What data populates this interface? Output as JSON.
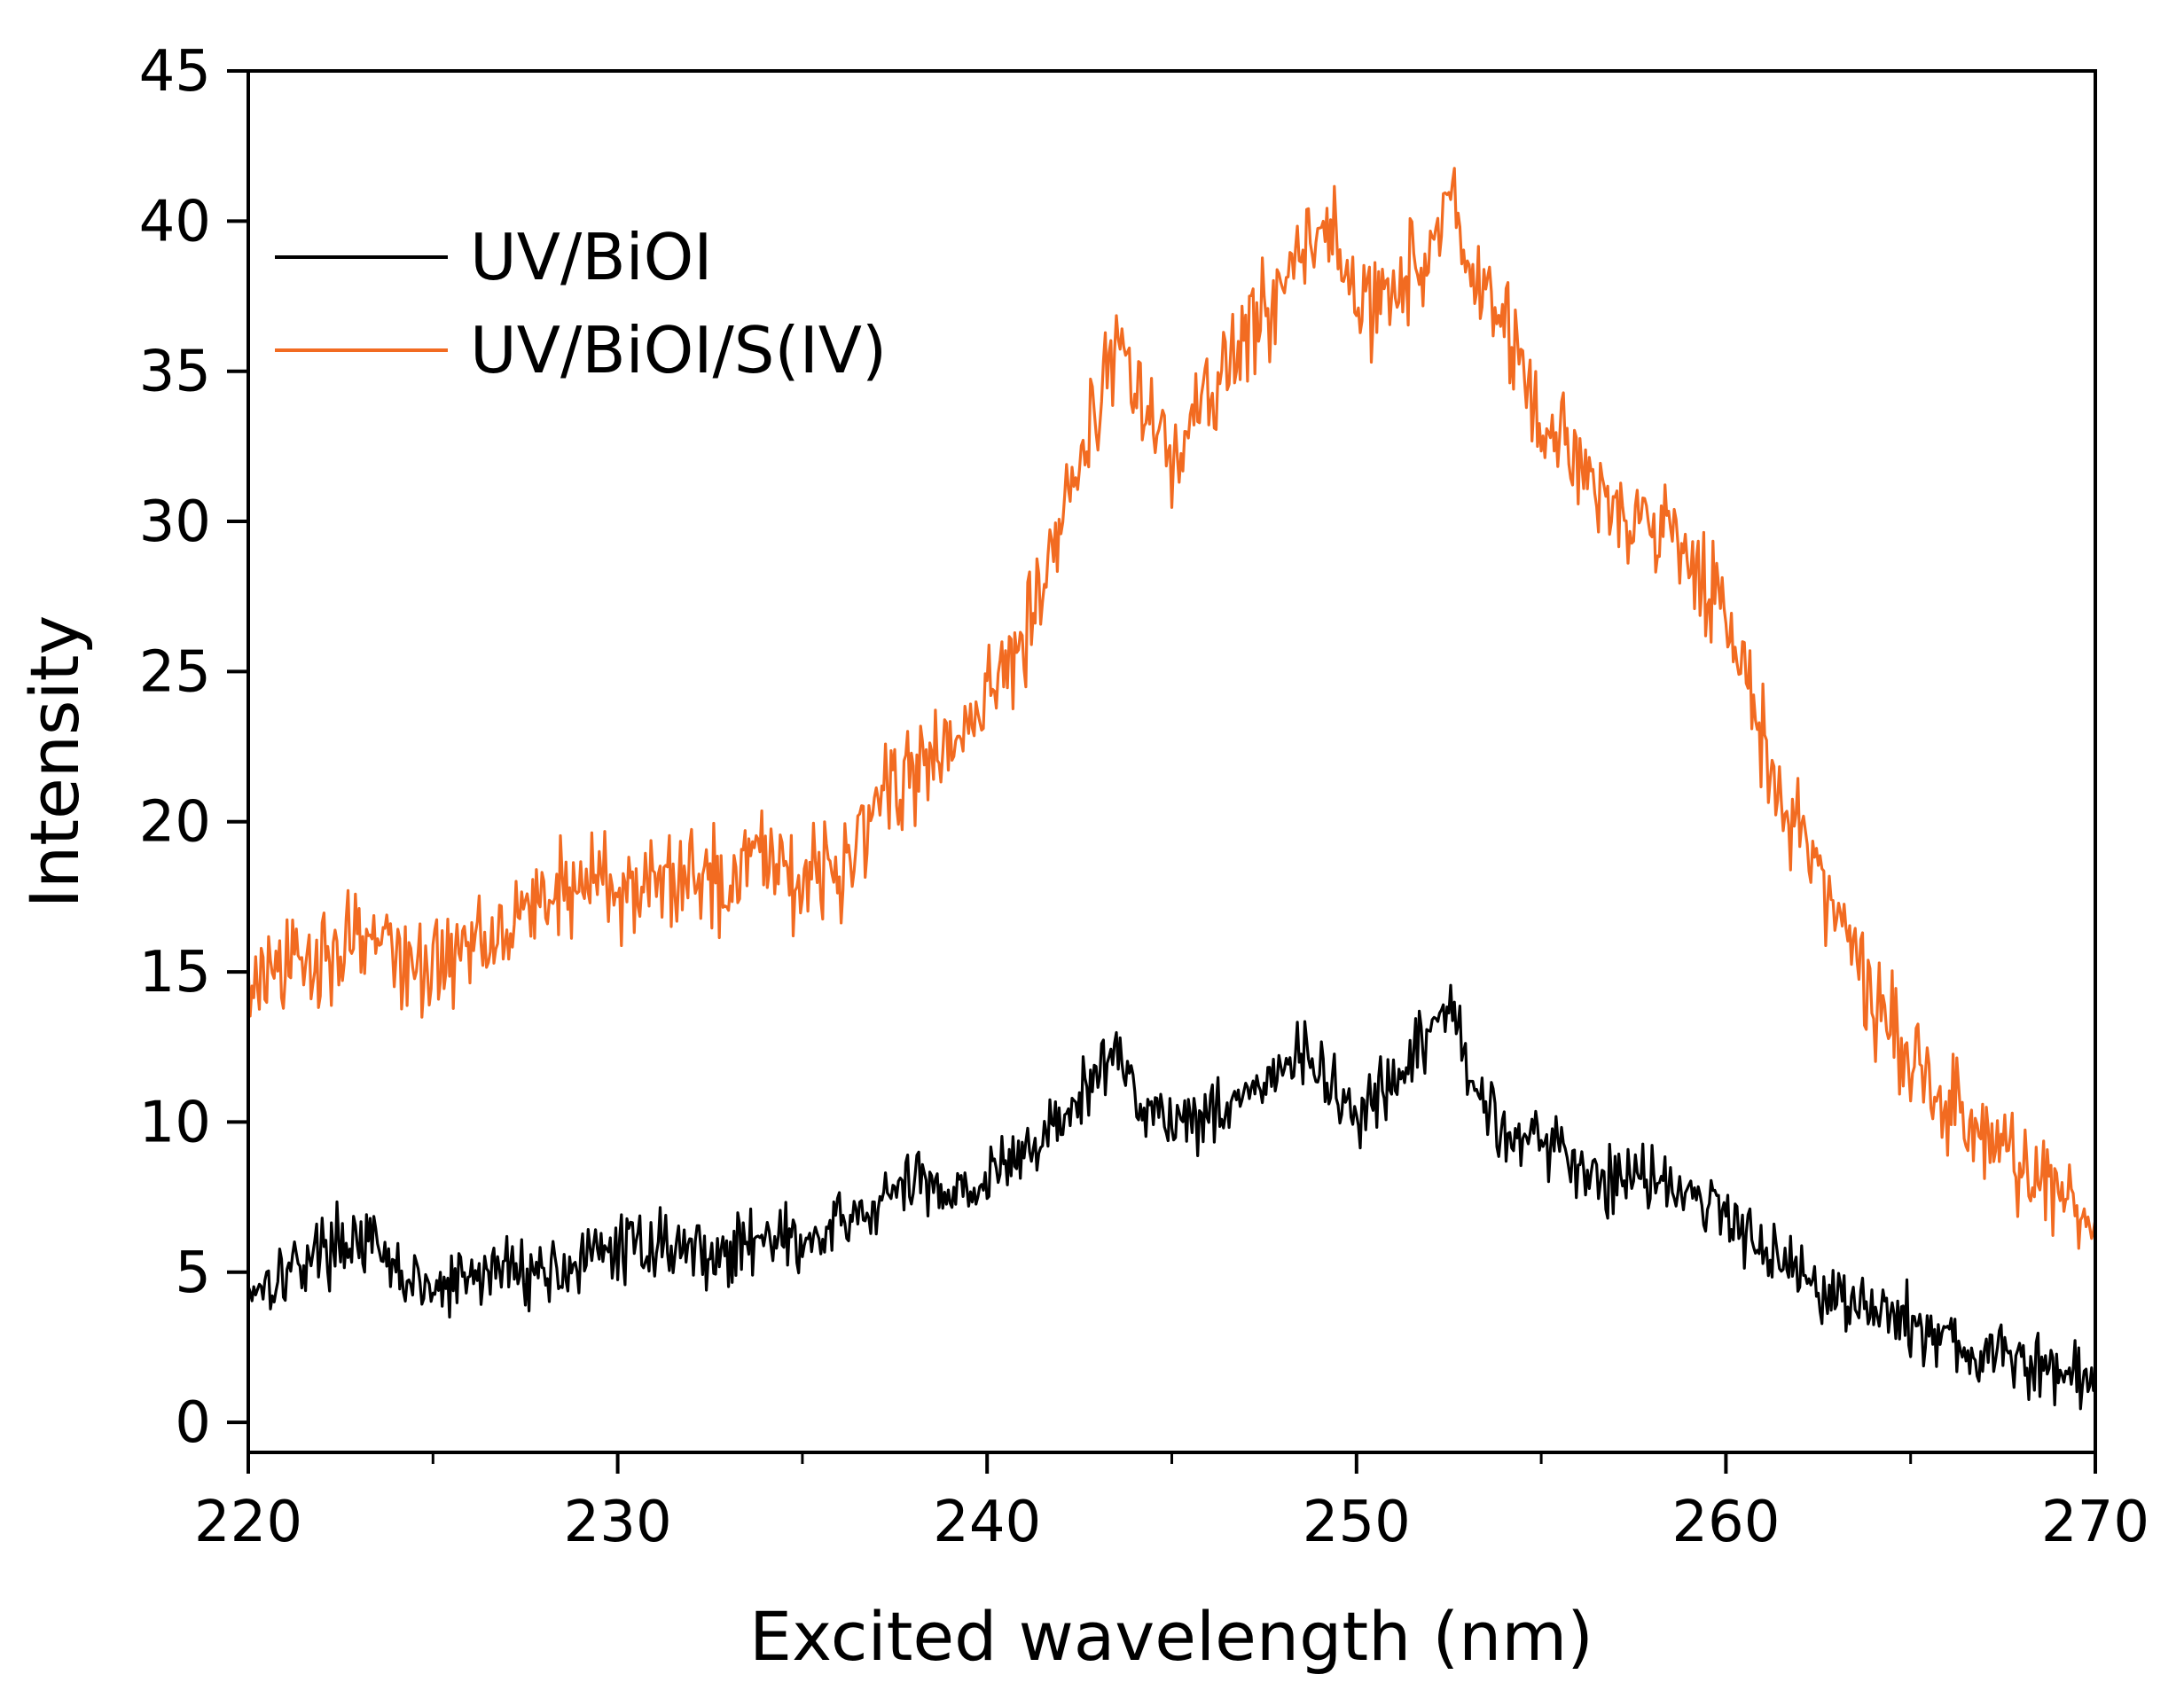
{
  "chart_data": {
    "type": "line",
    "xlabel": "Excited wavelength (nm)",
    "ylabel": "Intensity",
    "xlim": [
      220,
      270
    ],
    "ylim": [
      -1,
      45
    ],
    "xticks": [
      220,
      230,
      240,
      250,
      260,
      270
    ],
    "xtick_labels": [
      "220",
      "230",
      "240",
      "250",
      "260",
      "270"
    ],
    "yticks": [
      0,
      5,
      10,
      15,
      20,
      25,
      30,
      35,
      40,
      45
    ],
    "ytick_labels": [
      "0",
      "5",
      "10",
      "15",
      "20",
      "25",
      "30",
      "35",
      "40",
      "45"
    ],
    "legend_position": "top-left",
    "grid": false,
    "series": [
      {
        "name": "UV/BiOI",
        "color": "#000000",
        "x": [
          220,
          221,
          222,
          223,
          224,
          225,
          226,
          227,
          228,
          229,
          230,
          231,
          232,
          233,
          234,
          235,
          236,
          237,
          238,
          239,
          240,
          241,
          242,
          243,
          243.5,
          244,
          245,
          246,
          247,
          248,
          248.5,
          249,
          250,
          251,
          252,
          252.5,
          253,
          254,
          255,
          256,
          257,
          258,
          259,
          260,
          261,
          262,
          263,
          264,
          265,
          266,
          267,
          268,
          269,
          270
        ],
        "y": [
          4.5,
          5,
          5.8,
          6.2,
          5.0,
          4.3,
          4.8,
          5.2,
          5.0,
          5.3,
          5.8,
          6.0,
          5.8,
          5.5,
          6.5,
          5.8,
          6.5,
          7.2,
          8.0,
          7.8,
          8.0,
          9.0,
          10.0,
          11.5,
          12.5,
          11.0,
          10.0,
          10.3,
          11.0,
          11.5,
          12.5,
          11.5,
          10.2,
          11.0,
          13.0,
          14.2,
          11.5,
          9.8,
          9.5,
          8.5,
          8.0,
          8.5,
          7.5,
          7.0,
          6.0,
          5.0,
          4.2,
          3.8,
          3.3,
          2.7,
          2.2,
          2.0,
          1.6,
          1.4
        ]
      },
      {
        "name": "UV/BiOI/S(IV)",
        "color": "#f26b21",
        "x": [
          220,
          221,
          222,
          223,
          224,
          225,
          226,
          227,
          228,
          229,
          230,
          231,
          232,
          233,
          234,
          235,
          236,
          237,
          238,
          239,
          240,
          241,
          242,
          243,
          243.5,
          244,
          245,
          246,
          247,
          248,
          249,
          249.5,
          250,
          251,
          252,
          252.5,
          253,
          254,
          255,
          256,
          257,
          258,
          259,
          260,
          261,
          262,
          263,
          264,
          265,
          266,
          267,
          268,
          269,
          270
        ],
        "y": [
          14.5,
          15.0,
          15.5,
          16.5,
          15.5,
          15.0,
          16.0,
          16.8,
          17.5,
          18.0,
          18.0,
          17.5,
          18.5,
          18.0,
          19.5,
          18.0,
          18.5,
          21.0,
          21.5,
          22.5,
          24.0,
          26.5,
          30.0,
          34.0,
          36.0,
          34.5,
          32.0,
          34.0,
          36.0,
          38.0,
          40.0,
          39.0,
          37.0,
          38.0,
          38.5,
          41.0,
          38.5,
          36.5,
          33.0,
          32.0,
          30.5,
          30.0,
          29.0,
          27.0,
          22.5,
          19.5,
          17.0,
          14.0,
          12.0,
          10.5,
          9.5,
          8.5,
          7.5,
          6.5
        ]
      }
    ]
  }
}
